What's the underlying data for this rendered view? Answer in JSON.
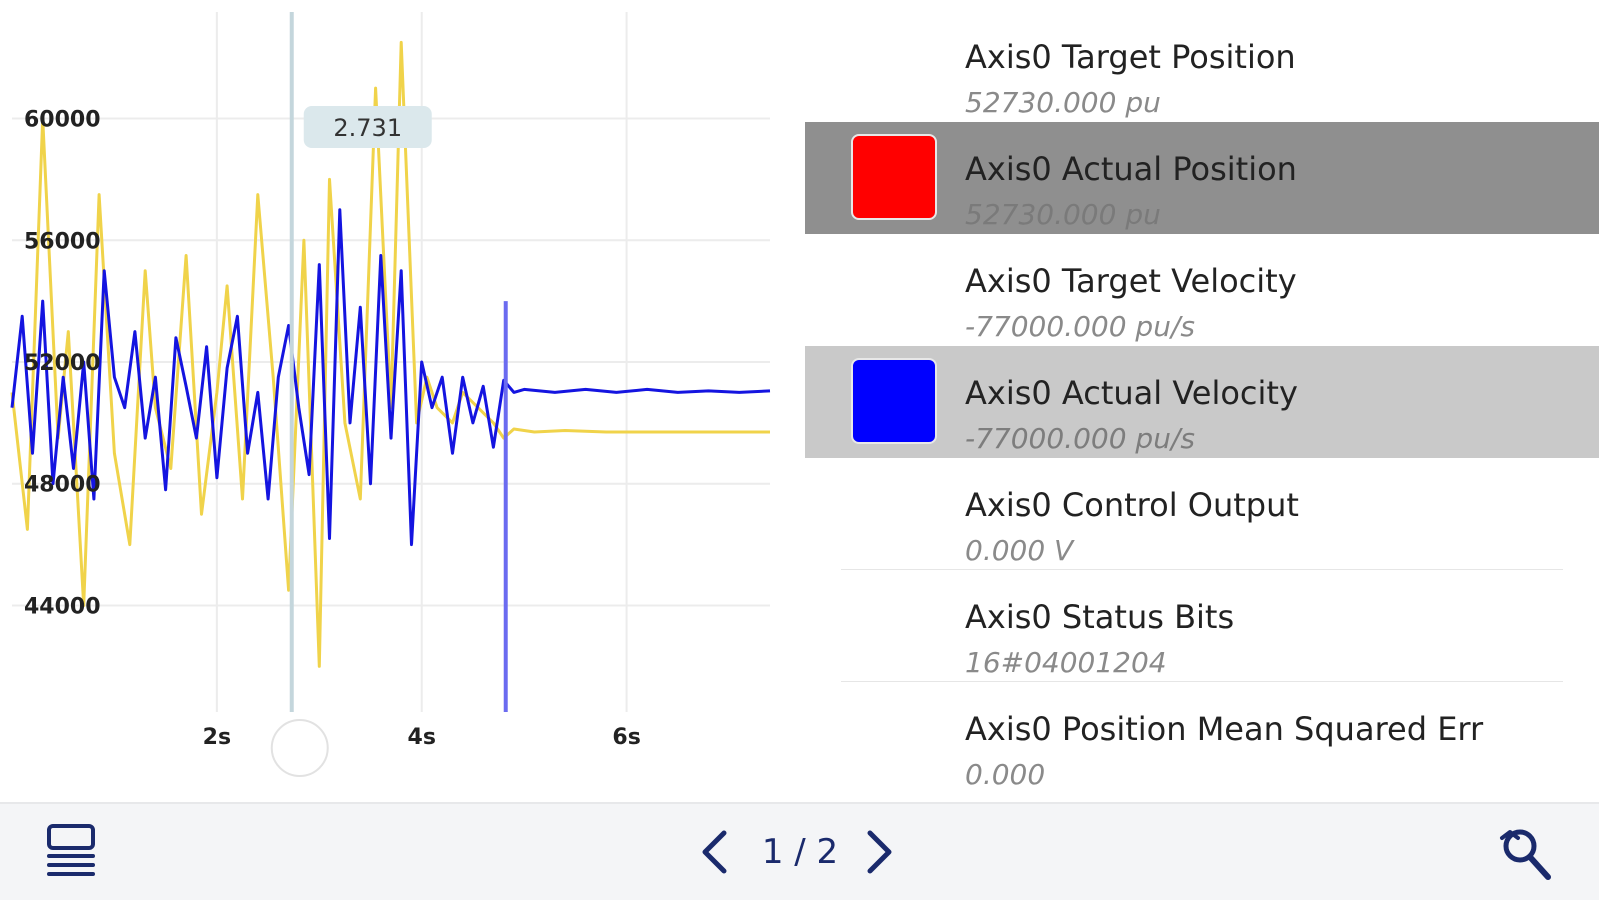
{
  "chart": {
    "y_ticks": [
      "60000",
      "56000",
      "52000",
      "48000",
      "44000"
    ],
    "x_ticks": [
      "2s",
      "4s",
      "6s"
    ],
    "cursor_label": "2.731"
  },
  "chart_data": {
    "type": "line",
    "x_ticks": [
      "2s",
      "4s",
      "6s"
    ],
    "y_ticks": [
      60000,
      56000,
      52000,
      48000,
      44000
    ],
    "xlim": [
      0,
      7.4
    ],
    "ylim": [
      40500,
      63500
    ],
    "grid": true,
    "cursor_x": 2.731,
    "marker_x": 4.82,
    "series": [
      {
        "color": "#f0d34a",
        "x": [
          0.0,
          0.15,
          0.3,
          0.45,
          0.55,
          0.7,
          0.85,
          1.0,
          1.15,
          1.3,
          1.4,
          1.55,
          1.7,
          1.85,
          2.0,
          2.1,
          2.25,
          2.4,
          2.55,
          2.7,
          2.85,
          3.0,
          3.1,
          3.25,
          3.4,
          3.55,
          3.7,
          3.8,
          3.95,
          4.05,
          4.15,
          4.3,
          4.4,
          4.55,
          4.7,
          4.8,
          4.9,
          5.1,
          5.4,
          5.8,
          6.2,
          6.6,
          7.0,
          7.4
        ],
        "y": [
          51000,
          46500,
          60000,
          49500,
          53000,
          44000,
          57500,
          49000,
          46000,
          55000,
          50500,
          48500,
          55500,
          47000,
          51000,
          54500,
          47500,
          57500,
          51500,
          44500,
          56000,
          42000,
          58000,
          50000,
          47500,
          61000,
          50500,
          62500,
          50000,
          51500,
          50500,
          50000,
          51000,
          50500,
          50000,
          49500,
          49800,
          49700,
          49750,
          49700,
          49700,
          49700,
          49700,
          49700
        ]
      },
      {
        "color": "#1414e0",
        "x": [
          0.0,
          0.1,
          0.2,
          0.3,
          0.4,
          0.5,
          0.6,
          0.7,
          0.8,
          0.9,
          1.0,
          1.1,
          1.2,
          1.3,
          1.4,
          1.5,
          1.6,
          1.7,
          1.8,
          1.9,
          2.0,
          2.1,
          2.2,
          2.3,
          2.4,
          2.5,
          2.6,
          2.7,
          2.8,
          2.9,
          3.0,
          3.1,
          3.2,
          3.3,
          3.4,
          3.5,
          3.6,
          3.7,
          3.8,
          3.9,
          4.0,
          4.1,
          4.2,
          4.3,
          4.4,
          4.5,
          4.6,
          4.7,
          4.8,
          4.9,
          5.0,
          5.3,
          5.6,
          5.9,
          6.2,
          6.5,
          6.8,
          7.1,
          7.4
        ],
        "y": [
          50500,
          53500,
          49000,
          54000,
          48000,
          51500,
          48500,
          52000,
          47500,
          55000,
          51500,
          50500,
          53000,
          49500,
          51500,
          47800,
          52800,
          51200,
          49500,
          52500,
          48200,
          51800,
          53500,
          49000,
          51000,
          47500,
          51500,
          53200,
          50500,
          48300,
          55200,
          46200,
          57000,
          50000,
          53800,
          48000,
          55500,
          49500,
          55000,
          46000,
          52000,
          50500,
          51500,
          49000,
          51500,
          50000,
          51200,
          49200,
          51400,
          51000,
          51100,
          51000,
          51100,
          51000,
          51100,
          51000,
          51050,
          51000,
          51050
        ]
      }
    ]
  },
  "signals": [
    {
      "name": "Axis0 Target Position",
      "value": "52730.000 pu",
      "color": "",
      "state": "none"
    },
    {
      "name": "Axis0 Actual Position",
      "value": "52730.000 pu",
      "color": "#ff0000",
      "state": "dark"
    },
    {
      "name": "Axis0 Target Velocity",
      "value": "-77000.000 pu/s",
      "color": "",
      "state": "none"
    },
    {
      "name": "Axis0 Actual Velocity",
      "value": "-77000.000 pu/s",
      "color": "#0000ff",
      "state": "light"
    },
    {
      "name": "Axis0 Control Output",
      "value": "0.000 V",
      "color": "",
      "state": "none"
    },
    {
      "name": "Axis0 Status Bits",
      "value": "16#04001204",
      "color": "",
      "state": "none"
    },
    {
      "name": "Axis0 Position Mean Squared Err",
      "value": "0.000",
      "color": "",
      "state": "none"
    }
  ],
  "toolbar": {
    "page_indicator": "1 / 2",
    "list_icon": "list-view-icon",
    "prev_icon": "chevron-left-icon",
    "next_icon": "chevron-right-icon",
    "zoom_icon": "zoom-icon"
  }
}
